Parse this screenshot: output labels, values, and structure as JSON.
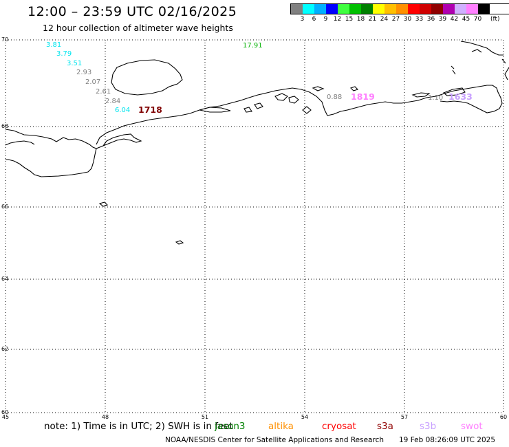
{
  "header": {
    "title": "12:00 – 23:59 UTC 02/16/2025",
    "subtitle": "12 hour collection of altimeter wave heights"
  },
  "legend": {
    "colors": [
      "#808080",
      "#00ffff",
      "#00b0ff",
      "#0000ff",
      "#40ff40",
      "#00c000",
      "#008000",
      "#ffff00",
      "#ffc000",
      "#ff9000",
      "#ff0000",
      "#d00000",
      "#900000",
      "#b000b0",
      "#d0b0ff",
      "#ff80ff",
      "#000000"
    ],
    "labels": [
      "3",
      "6",
      "9",
      "12",
      "15",
      "18",
      "21",
      "24",
      "27",
      "30",
      "33",
      "36",
      "39",
      "42",
      "45",
      "70"
    ],
    "unit": "(ft)"
  },
  "axes": {
    "lat_ticks": [
      "70",
      "68",
      "66",
      "64",
      "62",
      "60"
    ],
    "lon_ticks": [
      "45",
      "48",
      "51",
      "54",
      "57",
      "60"
    ]
  },
  "observations": [
    {
      "text": "3.81",
      "color": "#00e5ee"
    },
    {
      "text": "3.79",
      "color": "#00e5ee"
    },
    {
      "text": "3.51",
      "color": "#00e5ee"
    },
    {
      "text": "2.93",
      "color": "#808080"
    },
    {
      "text": "2.07",
      "color": "#808080"
    },
    {
      "text": "2.61",
      "color": "#808080"
    },
    {
      "text": "2.84",
      "color": "#808080"
    },
    {
      "text": "6.04",
      "color": "#00e5ee"
    },
    {
      "text": "1718",
      "color": "#800000"
    },
    {
      "text": "17.91",
      "color": "#00b000"
    },
    {
      "text": "0.88",
      "color": "#808080"
    },
    {
      "text": "1819",
      "color": "#ff80ff"
    },
    {
      "text": "1.10",
      "color": "#808080"
    },
    {
      "text": "1633",
      "color": "#c8a0ff"
    }
  ],
  "footer": {
    "note": "note: 1) Time is in UTC; 2) SWH is in feet",
    "missions": [
      {
        "name": "jason3",
        "color": "#008000"
      },
      {
        "name": "altika",
        "color": "#ff9000"
      },
      {
        "name": "cryosat",
        "color": "#ff0000"
      },
      {
        "name": "s3a",
        "color": "#900000"
      },
      {
        "name": "s3b",
        "color": "#c8a0ff"
      },
      {
        "name": "swot",
        "color": "#ff80ff"
      }
    ],
    "credit": "NOAA/NESDIS Center for Satellite Applications and Research",
    "timestamp": "19 Feb 08:26:09 UTC 2025"
  }
}
